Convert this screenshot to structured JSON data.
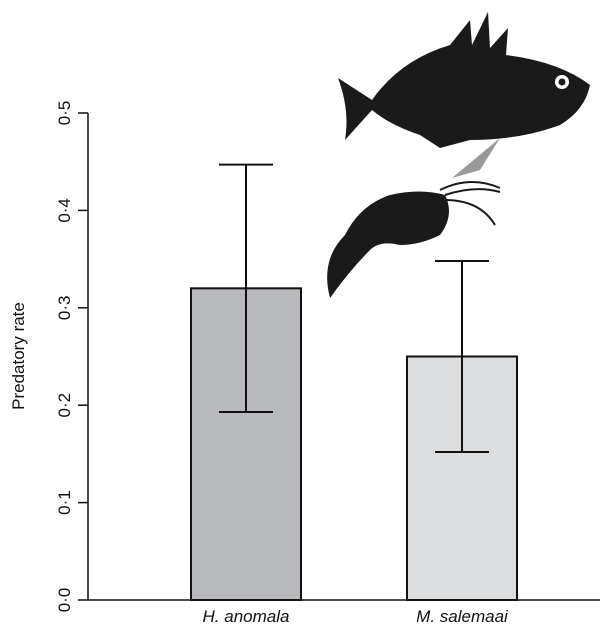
{
  "chart_data": {
    "type": "bar",
    "ylabel": "Predatory rate",
    "categories": [
      "H. anomala",
      "M. salemaai"
    ],
    "values": [
      0.32,
      0.25
    ],
    "errors": [
      0.127,
      0.098
    ],
    "colors": [
      "#b9babd",
      "#dcdddf"
    ],
    "ylim": [
      0,
      0.5
    ],
    "yticks": [
      {
        "value": 0,
        "label": "0·0"
      },
      {
        "value": 0.1,
        "label": "0·1"
      },
      {
        "value": 0.2,
        "label": "0·2"
      },
      {
        "value": 0.3,
        "label": "0·3"
      },
      {
        "value": 0.4,
        "label": "0·4"
      },
      {
        "value": 0.5,
        "label": "0·5"
      }
    ]
  }
}
